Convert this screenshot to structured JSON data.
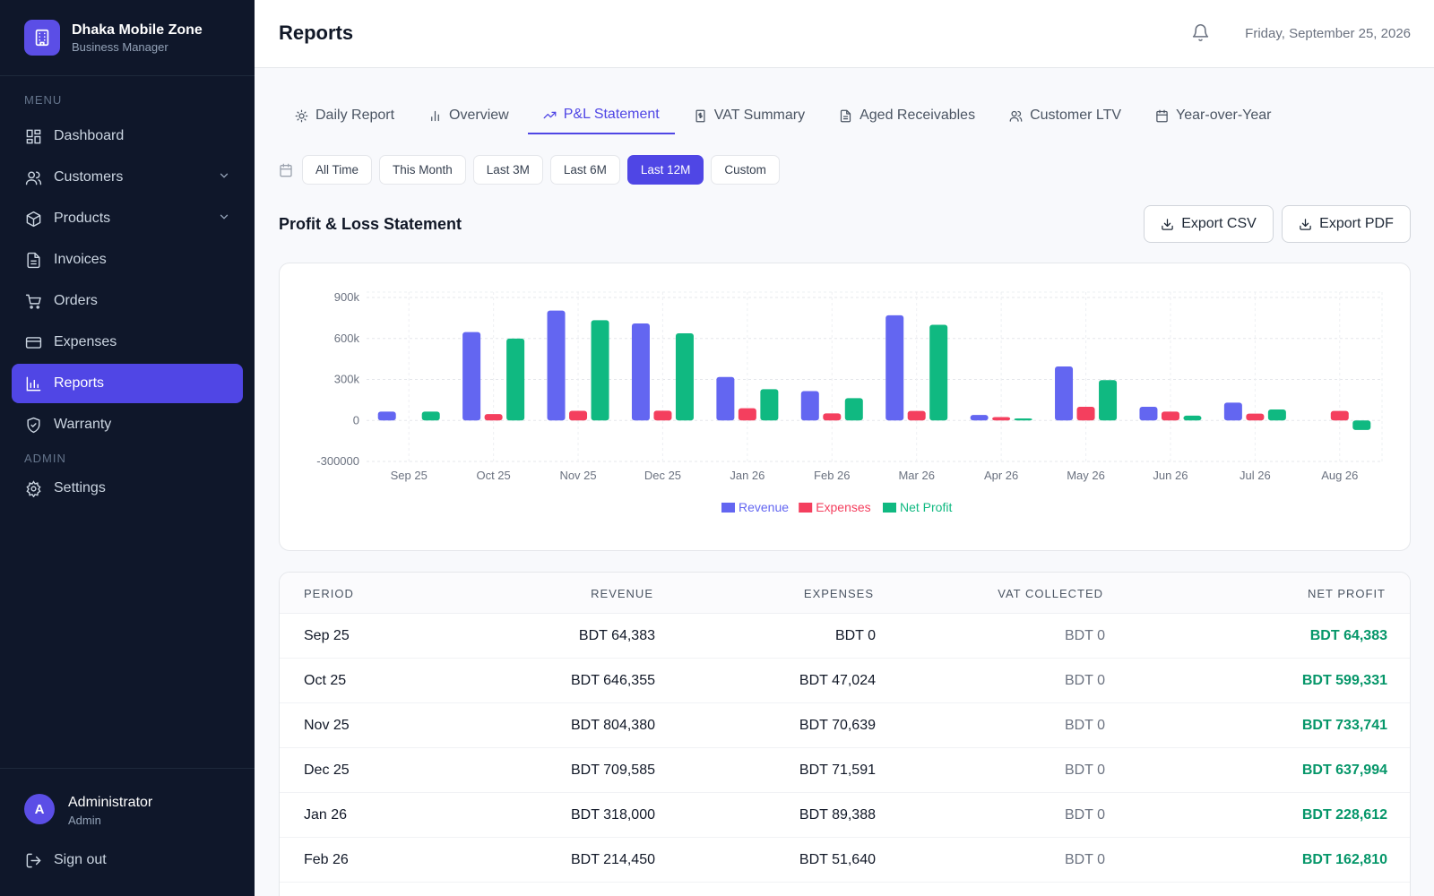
{
  "brand": {
    "name": "Dhaka Mobile Zone",
    "subtitle": "Business Manager"
  },
  "sidebar": {
    "menu_label": "MENU",
    "admin_label": "ADMIN",
    "items": [
      {
        "label": "Dashboard",
        "icon": "dashboard-icon"
      },
      {
        "label": "Customers",
        "icon": "users-icon",
        "expandable": true
      },
      {
        "label": "Products",
        "icon": "box-icon",
        "expandable": true
      },
      {
        "label": "Invoices",
        "icon": "file-icon"
      },
      {
        "label": "Orders",
        "icon": "cart-icon"
      },
      {
        "label": "Expenses",
        "icon": "card-icon"
      },
      {
        "label": "Reports",
        "icon": "bar-chart-icon",
        "active": true
      },
      {
        "label": "Warranty",
        "icon": "shield-icon"
      }
    ],
    "admin_items": [
      {
        "label": "Settings",
        "icon": "gear-icon"
      }
    ]
  },
  "user": {
    "initial": "A",
    "name": "Administrator",
    "role": "Admin",
    "signout_label": "Sign out"
  },
  "header": {
    "title": "Reports",
    "date": "Friday, September 25, 2026"
  },
  "tabs": [
    {
      "label": "Daily Report",
      "icon": "sun-icon"
    },
    {
      "label": "Overview",
      "icon": "bar-icon"
    },
    {
      "label": "P&L Statement",
      "icon": "trend-icon",
      "active": true
    },
    {
      "label": "VAT Summary",
      "icon": "receipt-icon"
    },
    {
      "label": "Aged Receivables",
      "icon": "document-icon"
    },
    {
      "label": "Customer LTV",
      "icon": "users-icon"
    },
    {
      "label": "Year-over-Year",
      "icon": "calendar-icon"
    }
  ],
  "filters": {
    "options": [
      "All Time",
      "This Month",
      "Last 3M",
      "Last 6M",
      "Last 12M",
      "Custom"
    ],
    "selected": "Last 12M"
  },
  "section": {
    "title": "Profit & Loss Statement",
    "export_csv": "Export CSV",
    "export_pdf": "Export PDF"
  },
  "colors": {
    "revenue": "#6366f1",
    "expenses": "#f43f5e",
    "net_profit": "#10b981",
    "accent": "#4f46e5"
  },
  "chart_data": {
    "type": "bar",
    "categories": [
      "Sep 25",
      "Oct 25",
      "Nov 25",
      "Dec 25",
      "Jan 26",
      "Feb 26",
      "Mar 26",
      "Apr 26",
      "May 26",
      "Jun 26",
      "Jul 26",
      "Aug 26"
    ],
    "series": [
      {
        "name": "Revenue",
        "values": [
          64383,
          646355,
          804380,
          709585,
          318000,
          214450,
          770000,
          40000,
          395000,
          100000,
          130000,
          0
        ]
      },
      {
        "name": "Expenses",
        "values": [
          0,
          47024,
          70639,
          71591,
          89388,
          51640,
          70000,
          25000,
          100000,
          65000,
          50000,
          70000
        ]
      },
      {
        "name": "Net Profit",
        "values": [
          64383,
          599331,
          733741,
          637994,
          228612,
          162810,
          700000,
          15000,
          295000,
          35000,
          80000,
          -70000
        ]
      }
    ],
    "yticks": [
      "900k",
      "600k",
      "300k",
      "0",
      "-300000"
    ],
    "ylim": [
      -300000,
      900000
    ],
    "grid": true,
    "legend": "bottom"
  },
  "table": {
    "headers": [
      "PERIOD",
      "REVENUE",
      "EXPENSES",
      "VAT COLLECTED",
      "NET PROFIT"
    ],
    "rows": [
      {
        "period": "Sep 25",
        "revenue": "BDT 64,383",
        "expenses": "BDT 0",
        "vat": "BDT 0",
        "net": "BDT 64,383"
      },
      {
        "period": "Oct 25",
        "revenue": "BDT 646,355",
        "expenses": "BDT 47,024",
        "vat": "BDT 0",
        "net": "BDT 599,331"
      },
      {
        "period": "Nov 25",
        "revenue": "BDT 804,380",
        "expenses": "BDT 70,639",
        "vat": "BDT 0",
        "net": "BDT 733,741"
      },
      {
        "period": "Dec 25",
        "revenue": "BDT 709,585",
        "expenses": "BDT 71,591",
        "vat": "BDT 0",
        "net": "BDT 637,994"
      },
      {
        "period": "Jan 26",
        "revenue": "BDT 318,000",
        "expenses": "BDT 89,388",
        "vat": "BDT 0",
        "net": "BDT 228,612"
      },
      {
        "period": "Feb 26",
        "revenue": "BDT 214,450",
        "expenses": "BDT 51,640",
        "vat": "BDT 0",
        "net": "BDT 162,810"
      }
    ]
  }
}
